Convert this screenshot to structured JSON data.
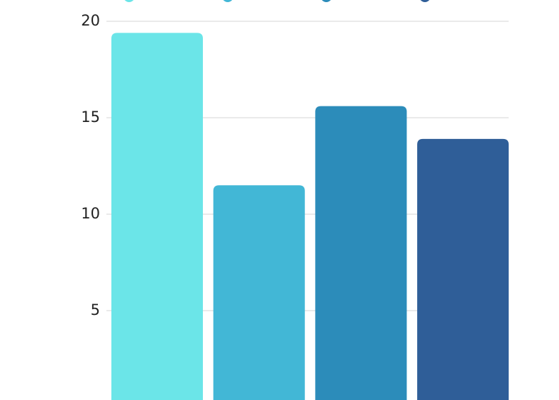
{
  "chart_data": {
    "type": "bar",
    "categories": [
      null,
      null,
      null,
      null
    ],
    "values": [
      19.4,
      11.5,
      15.6,
      13.9
    ],
    "colors": [
      "#6be5e8",
      "#42b7d6",
      "#2c8cba",
      "#2f5e98"
    ],
    "ylim": [
      0,
      20
    ],
    "yticks": [
      5,
      10,
      15,
      20
    ],
    "grid": true
  }
}
